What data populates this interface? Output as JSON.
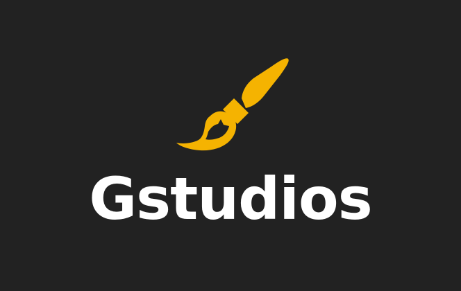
{
  "brand": {
    "name": "Gstudios",
    "logo_icon": "paintbrush-icon"
  },
  "colors": {
    "background": "#222222",
    "accent": "#F5B301",
    "text": "#FFFFFF"
  }
}
